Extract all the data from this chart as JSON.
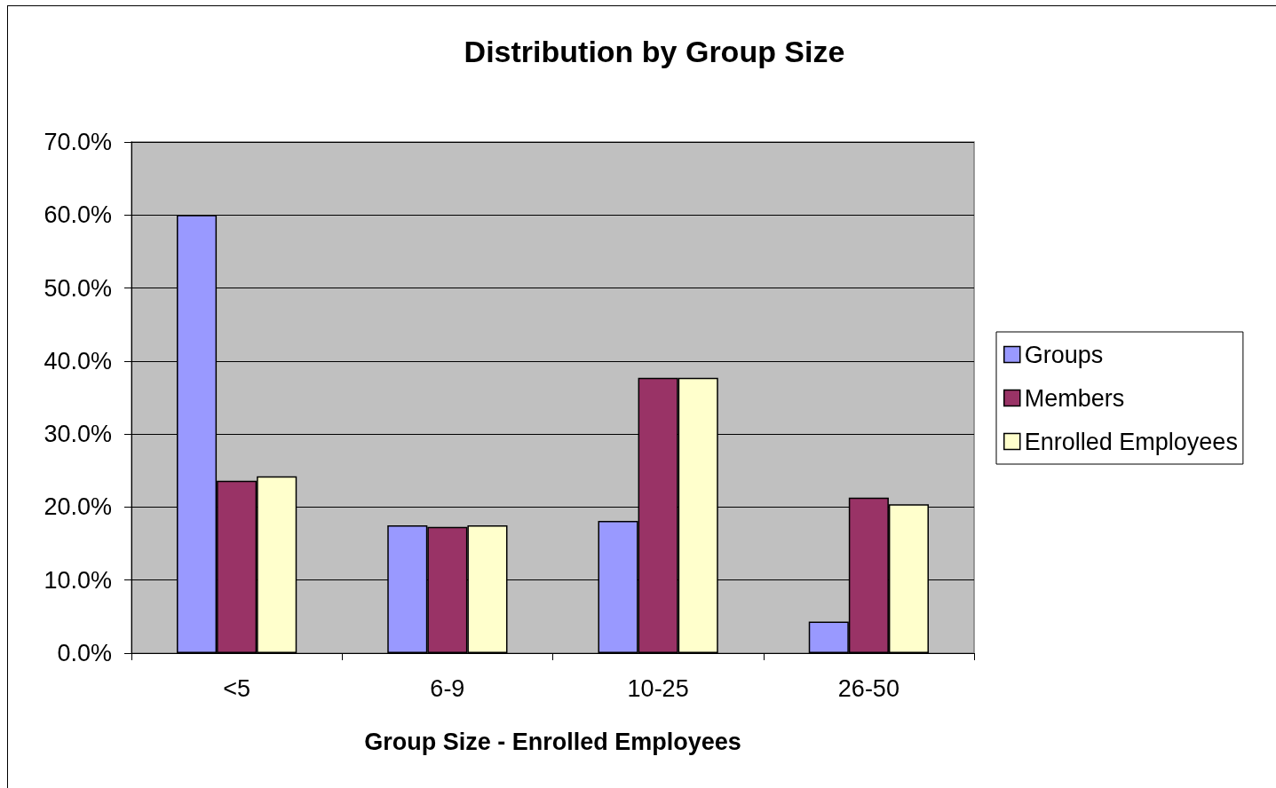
{
  "chart_data": {
    "type": "bar",
    "title": "Distribution by Group Size",
    "xlabel": "Group Size - Enrolled Employees",
    "categories": [
      "<5",
      "6-9",
      "10-25",
      "26-50"
    ],
    "series": [
      {
        "name": "Groups",
        "color": "#9999ff",
        "values": [
          60.0,
          17.5,
          18.1,
          4.3
        ]
      },
      {
        "name": "Members",
        "color": "#993366",
        "values": [
          23.6,
          17.3,
          37.7,
          21.3
        ]
      },
      {
        "name": "Enrolled Employees",
        "color": "#ffffcc",
        "values": [
          24.2,
          17.5,
          37.7,
          20.4
        ]
      }
    ],
    "ylim": [
      0,
      70
    ],
    "yticks": [
      {
        "value": 0,
        "label": "0.0%"
      },
      {
        "value": 10,
        "label": "10.0%"
      },
      {
        "value": 20,
        "label": "20.0%"
      },
      {
        "value": 30,
        "label": "30.0%"
      },
      {
        "value": 40,
        "label": "40.0%"
      },
      {
        "value": 50,
        "label": "50.0%"
      },
      {
        "value": 60,
        "label": "60.0%"
      },
      {
        "value": 70,
        "label": "70.0%"
      }
    ],
    "grid": "y",
    "legend": "right"
  }
}
